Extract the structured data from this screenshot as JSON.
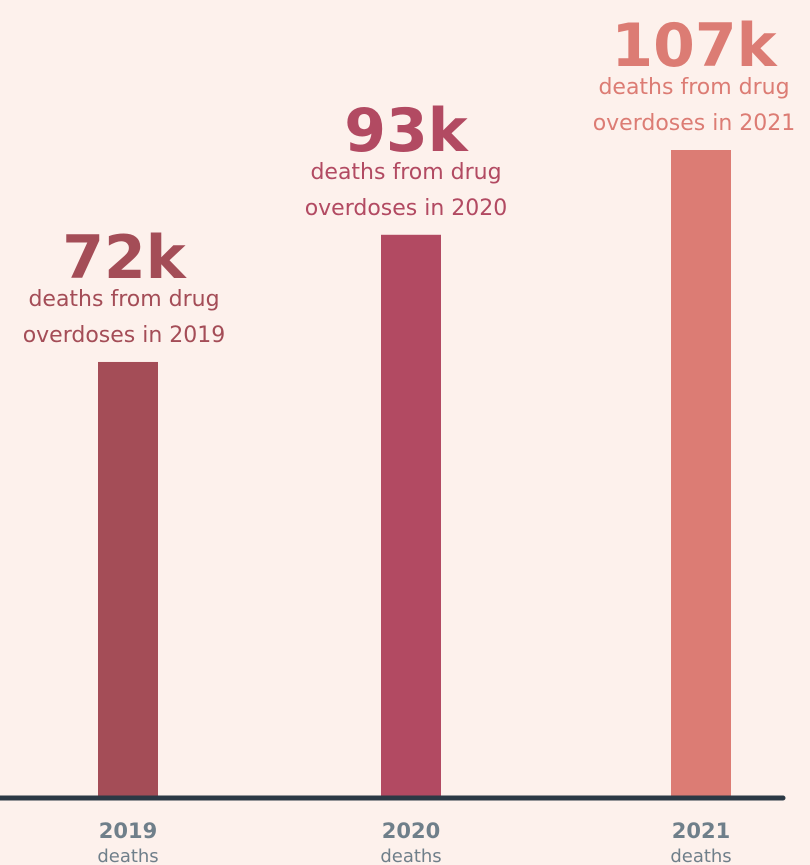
{
  "chart_data": {
    "type": "bar",
    "categories": [
      "2019",
      "2020",
      "2021"
    ],
    "values": [
      72,
      93,
      107
    ],
    "value_labels": [
      "72k",
      "93k",
      "107k"
    ],
    "captions": [
      [
        "deaths from drug",
        "overdoses in 2019"
      ],
      [
        "deaths from drug",
        "overdoses in 2020"
      ],
      [
        "deaths from drug",
        "overdoses in 2021"
      ]
    ],
    "sublabels": [
      "deaths",
      "deaths",
      "deaths"
    ],
    "colors": [
      "#a44d57",
      "#b24a62",
      "#dc7c74"
    ],
    "axis_color": "#2b3945",
    "background": "#fdf1ec",
    "unit": "thousands of deaths",
    "grid": false,
    "legend": "none"
  }
}
